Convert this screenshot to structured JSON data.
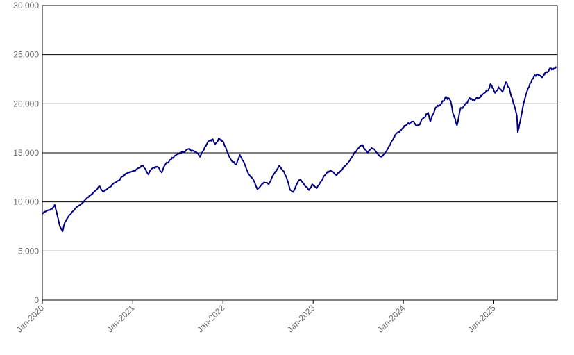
{
  "chart_data": {
    "type": "line",
    "title": "",
    "xlabel": "",
    "ylabel": "",
    "ylim": [
      0,
      30000
    ],
    "xlim": [
      "2020-01-01",
      "2025-09-15"
    ],
    "grid": "horizontal",
    "legend": "none",
    "line_color": "#000080",
    "y_ticks": [
      "0",
      "5,000",
      "10,000",
      "15,000",
      "20,000",
      "25,000",
      "30,000"
    ],
    "x_ticks": [
      "Jan-2020",
      "Jan-2021",
      "Jan-2022",
      "Jan-2023",
      "Jan-2024",
      "Jan-2025"
    ],
    "series": [
      {
        "name": "",
        "x": [
          "2020-01-01",
          "2020-01-20",
          "2020-02-10",
          "2020-02-20",
          "2020-03-05",
          "2020-03-12",
          "2020-03-23",
          "2020-04-01",
          "2020-04-15",
          "2020-05-01",
          "2020-05-20",
          "2020-06-08",
          "2020-06-26",
          "2020-07-15",
          "2020-08-05",
          "2020-08-20",
          "2020-09-03",
          "2020-09-23",
          "2020-10-12",
          "2020-10-30",
          "2020-11-15",
          "2020-12-05",
          "2020-12-30",
          "2021-01-20",
          "2021-02-12",
          "2021-03-05",
          "2021-03-20",
          "2021-04-10",
          "2021-04-28",
          "2021-05-12",
          "2021-06-01",
          "2021-06-20",
          "2021-07-10",
          "2021-07-30",
          "2021-08-15",
          "2021-09-05",
          "2021-09-30",
          "2021-10-20",
          "2021-11-05",
          "2021-11-20",
          "2021-12-01",
          "2021-12-15",
          "2022-01-03",
          "2022-01-20",
          "2022-02-05",
          "2022-02-24",
          "2022-03-10",
          "2022-03-29",
          "2022-04-15",
          "2022-05-05",
          "2022-05-20",
          "2022-06-16",
          "2022-07-05",
          "2022-07-25",
          "2022-08-16",
          "2022-09-05",
          "2022-09-20",
          "2022-09-30",
          "2022-10-12",
          "2022-10-28",
          "2022-11-10",
          "2022-11-30",
          "2022-12-15",
          "2022-12-28",
          "2023-01-15",
          "2023-02-02",
          "2023-02-20",
          "2023-03-13",
          "2023-04-05",
          "2023-04-25",
          "2023-05-15",
          "2023-06-05",
          "2023-06-30",
          "2023-07-19",
          "2023-08-10",
          "2023-08-25",
          "2023-09-15",
          "2023-10-05",
          "2023-10-27",
          "2023-11-15",
          "2023-12-05",
          "2023-12-28",
          "2024-01-15",
          "2024-02-05",
          "2024-02-28",
          "2024-03-20",
          "2024-04-10",
          "2024-04-19",
          "2024-05-10",
          "2024-05-30",
          "2024-06-20",
          "2024-07-10",
          "2024-07-20",
          "2024-08-05",
          "2024-08-20",
          "2024-09-06",
          "2024-09-25",
          "2024-10-15",
          "2024-11-01",
          "2024-11-20",
          "2024-12-10",
          "2024-12-18",
          "2025-01-06",
          "2025-01-20",
          "2025-02-05",
          "2025-02-19",
          "2025-03-05",
          "2025-03-12",
          "2025-03-25",
          "2025-04-04",
          "2025-04-08",
          "2025-04-20",
          "2025-05-01",
          "2025-05-20",
          "2025-06-05",
          "2025-06-25",
          "2025-07-15",
          "2025-07-30",
          "2025-08-15",
          "2025-08-30",
          "2025-09-10"
        ],
        "values": [
          8800,
          9100,
          9300,
          9700,
          8300,
          7500,
          7000,
          7900,
          8500,
          9000,
          9500,
          9800,
          10300,
          10700,
          11200,
          11600,
          11000,
          11400,
          11800,
          12100,
          12500,
          12900,
          13100,
          13400,
          13700,
          12800,
          13400,
          13600,
          13000,
          13800,
          14300,
          14700,
          15000,
          15100,
          15400,
          15200,
          14600,
          15600,
          16200,
          16400,
          15900,
          16500,
          16100,
          15000,
          14200,
          13800,
          14800,
          13900,
          12800,
          12200,
          11300,
          12000,
          11800,
          12800,
          13700,
          13100,
          12100,
          11200,
          11000,
          11900,
          12300,
          11600,
          11200,
          11800,
          11400,
          12100,
          12800,
          13200,
          12700,
          13200,
          13800,
          14500,
          15400,
          15800,
          15000,
          15500,
          15000,
          14600,
          15300,
          16200,
          17000,
          17500,
          17900,
          18200,
          17800,
          18500,
          19100,
          18200,
          19600,
          19900,
          20700,
          20300,
          19000,
          17800,
          19600,
          19900,
          20600,
          20300,
          20600,
          21000,
          21400,
          22000,
          21100,
          21700,
          21200,
          22200,
          21600,
          20800,
          19800,
          18800,
          17100,
          18500,
          20000,
          21600,
          22500,
          23000,
          22700,
          23200,
          23600,
          23500,
          23800
        ]
      }
    ]
  }
}
